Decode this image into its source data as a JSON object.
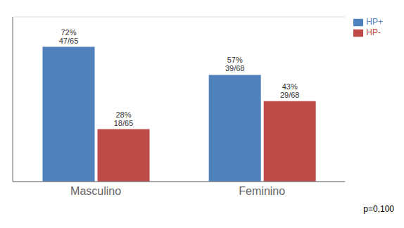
{
  "chart_data": {
    "type": "bar",
    "categories": [
      "Masculino",
      "Feminino"
    ],
    "series": [
      {
        "name": "HP+",
        "color": "#4F81BD",
        "values": [
          72,
          57
        ],
        "value_labels": [
          "72%\n47/65",
          "57%\n39/68"
        ]
      },
      {
        "name": "HP-",
        "color": "#BE4B48",
        "values": [
          28,
          43
        ],
        "value_labels": [
          "28%\n18/65",
          "43%\n29/68"
        ]
      }
    ],
    "ylim": [
      0,
      88
    ],
    "yticks": [
      10,
      20,
      30,
      40,
      50,
      60,
      70,
      80
    ],
    "grid": true,
    "legend": "upper right",
    "data_labels": true,
    "tick_labels": "x",
    "annotations": [
      "p=0,100"
    ]
  }
}
